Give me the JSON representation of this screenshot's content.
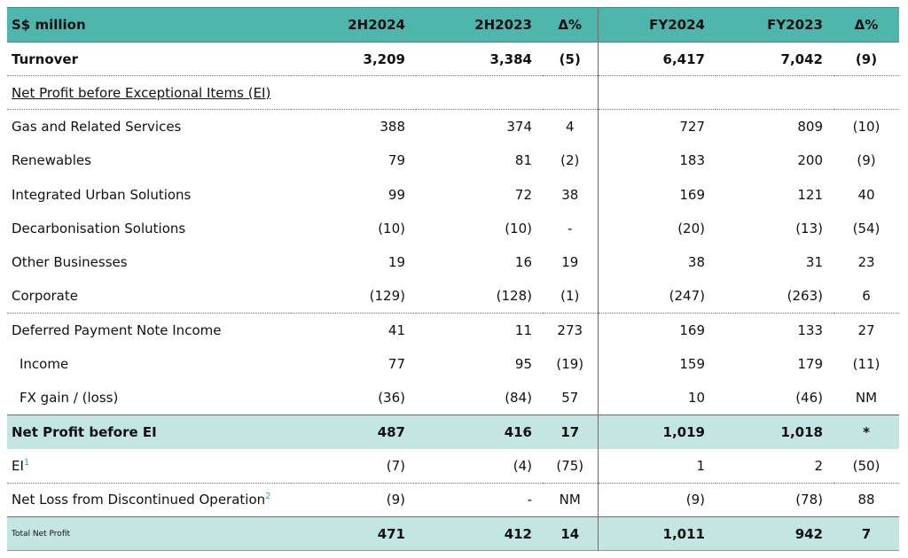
{
  "header": {
    "label": "S$ million",
    "columns": [
      "2H2024",
      "2H2023",
      "Δ%",
      "FY2024",
      "FY2023",
      "Δ%"
    ]
  },
  "rows": {
    "turnover": {
      "label": "Turnover",
      "values": [
        "3,209",
        "3,384",
        "(5)",
        "6,417",
        "7,042",
        "(9)"
      ]
    },
    "section": {
      "label": "Net Profit before Exceptional Items (EI)"
    },
    "gas": {
      "label": "Gas and Related Services",
      "values": [
        "388",
        "374",
        "4",
        "727",
        "809",
        "(10)"
      ]
    },
    "renewables": {
      "label": "Renewables",
      "values": [
        "79",
        "81",
        "(2)",
        "183",
        "200",
        "(9)"
      ]
    },
    "urban": {
      "label": "Integrated Urban Solutions",
      "values": [
        "99",
        "72",
        "38",
        "169",
        "121",
        "40"
      ]
    },
    "decarb": {
      "label": "Decarbonisation Solutions",
      "values": [
        "(10)",
        "(10)",
        "-",
        "(20)",
        "(13)",
        "(54)"
      ]
    },
    "other": {
      "label": "Other Businesses",
      "values": [
        "19",
        "16",
        "19",
        "38",
        "31",
        "23"
      ]
    },
    "corporate": {
      "label": "Corporate",
      "values": [
        "(129)",
        "(128)",
        "(1)",
        "(247)",
        "(263)",
        "6"
      ]
    },
    "dpn": {
      "label": "Deferred Payment Note Income",
      "values": [
        "41",
        "11",
        "273",
        "169",
        "133",
        "27"
      ]
    },
    "income": {
      "label": "Income",
      "values": [
        "77",
        "95",
        "(19)",
        "159",
        "179",
        "(11)"
      ]
    },
    "fx": {
      "label": "FX gain / (loss)",
      "values": [
        "(36)",
        "(84)",
        "57",
        "10",
        "(46)",
        "NM"
      ]
    },
    "np_before_ei": {
      "label": "Net Profit before EI",
      "values": [
        "487",
        "416",
        "17",
        "1,019",
        "1,018",
        "*"
      ]
    },
    "ei": {
      "label": "EI",
      "sup": "1",
      "values": [
        "(7)",
        "(4)",
        "(75)",
        "1",
        "2",
        "(50)"
      ]
    },
    "discontinued": {
      "label": "Net Loss from Discontinued Operation",
      "sup": "2",
      "values": [
        "(9)",
        "-",
        "NM",
        "(9)",
        "(78)",
        "88"
      ]
    },
    "total": {
      "label": "Total Net Profit",
      "values": [
        "471",
        "412",
        "14",
        "1,011",
        "942",
        "7"
      ]
    }
  }
}
